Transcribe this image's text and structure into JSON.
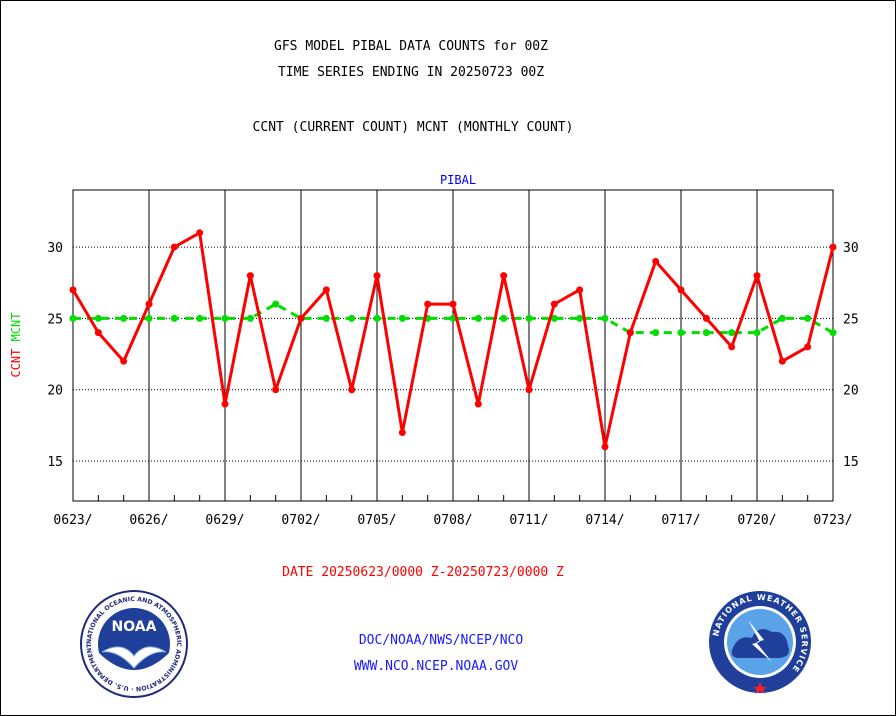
{
  "header": {
    "title_line1": "GFS MODEL PIBAL DATA COUNTS for 00Z",
    "title_line2": "TIME SERIES ENDING IN 20250723 00Z",
    "subtitle": "CCNT (CURRENT COUNT) MCNT (MONTHLY COUNT)"
  },
  "footer": {
    "date_range": "DATE 20250623/0000 Z-20250723/0000 Z",
    "org_path": "DOC/NOAA/NWS/NCEP/NCO",
    "website": "WWW.NCO.NCEP.NOAA.GOV"
  },
  "logos": {
    "noaa_text": "NOAA",
    "noaa_ring": "NATIONAL OCEANIC AND ATMOSPHERIC ADMINISTRATION · U.S. DEPARTMENT OF COMMERCE",
    "nws_ring": "NATIONAL WEATHER SERVICE"
  },
  "chart_data": {
    "type": "line",
    "title": "PIBAL",
    "ylabel_left": [
      "CCNT",
      "MCNT"
    ],
    "ylim": [
      12.2,
      34
    ],
    "y_ticks": [
      15,
      20,
      25,
      30
    ],
    "grid_horizontal": true,
    "x_count": 31,
    "x_tick_labels": [
      "0623/",
      "0626/",
      "0629/",
      "0702/",
      "0705/",
      "0708/",
      "0711/",
      "0714/",
      "0717/",
      "0720/",
      "0723/"
    ],
    "x_tick_every": 3,
    "dates": [
      "0623",
      "0624",
      "0625",
      "0626",
      "0627",
      "0628",
      "0629",
      "0630",
      "0701",
      "0702",
      "0703",
      "0704",
      "0705",
      "0706",
      "0707",
      "0708",
      "0709",
      "0710",
      "0711",
      "0712",
      "0713",
      "0714",
      "0715",
      "0716",
      "0717",
      "0718",
      "0719",
      "0720",
      "0721",
      "0722",
      "0723"
    ],
    "series": [
      {
        "name": "CCNT",
        "color": "#ff0000",
        "style": "solid",
        "values": [
          27,
          24,
          22,
          26,
          30,
          31,
          19,
          28,
          20,
          25,
          27,
          20,
          28,
          17,
          26,
          26,
          19,
          28,
          20,
          26,
          27,
          16,
          24,
          29,
          27,
          25,
          23,
          28,
          22,
          23,
          30
        ]
      },
      {
        "name": "MCNT",
        "color": "#00dd00",
        "style": "dashed",
        "values": [
          25,
          25,
          25,
          25,
          25,
          25,
          25,
          25,
          26,
          25,
          25,
          25,
          25,
          25,
          25,
          25,
          25,
          25,
          25,
          25,
          25,
          25,
          24,
          24,
          24,
          24,
          24,
          24,
          25,
          25,
          24
        ]
      }
    ],
    "colors": {
      "axis": "#000000",
      "title": "#0000ff",
      "ccnt": "#ff0000",
      "mcnt": "#00dd00"
    }
  }
}
